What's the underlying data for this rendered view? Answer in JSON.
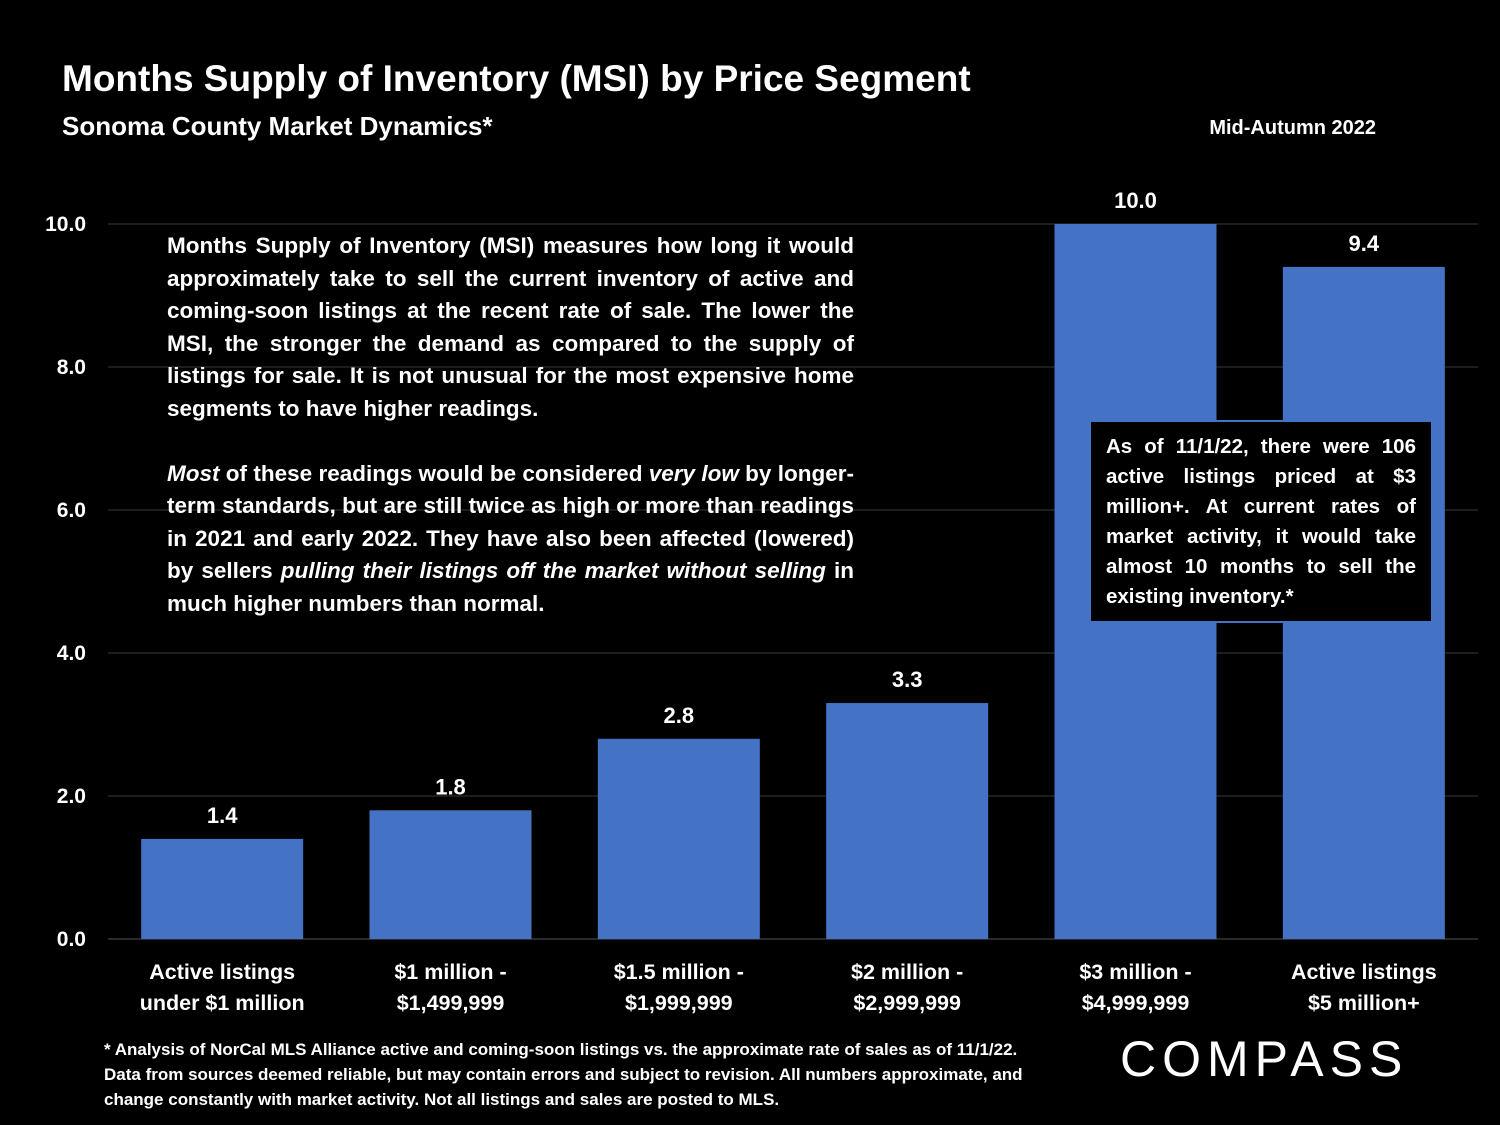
{
  "header": {
    "title": "Months Supply of Inventory (MSI) by Price Segment",
    "subtitle": "Sonoma County Market Dynamics*",
    "date": "Mid-Autumn 2022"
  },
  "description": {
    "paragraph1": "Months Supply of Inventory (MSI) measures how long it would approximately take to sell the current inventory of active and coming-soon listings at the recent rate of sale. The lower the MSI, the stronger the demand as compared to the supply of listings for sale. It is not unusual for the most expensive home segments to have higher readings.",
    "p2_em1": "Most",
    "p2_t1": " of these readings would be considered ",
    "p2_em2": "very low",
    "p2_t2": " by longer-term standards, but are still twice as high or more than readings in 2021 and early 2022. They have also been affected (lowered) by sellers ",
    "p2_em3": "pulling their listings off the market without selling",
    "p2_t3": " in much higher numbers than normal."
  },
  "callout": {
    "text": "As of 11/1/22, there were 106 active listings priced at $3 million+. At current rates of market activity, it would take almost 10 months to sell the existing inventory.*"
  },
  "footnote": "* Analysis of NorCal MLS Alliance active and coming-soon listings vs. the approximate rate of sales as of 11/1/22. Data from sources deemed reliable, but may contain errors and subject to revision. All numbers approximate, and change constantly with market activity. Not all listings and sales are posted to MLS.",
  "logo": "COMPASS",
  "colors": {
    "bar": "#4472c4",
    "background": "#000000",
    "gridline": "#3a3a3a",
    "text": "#ffffff"
  },
  "chart_data": {
    "type": "bar",
    "title": "Months Supply of Inventory (MSI) by Price Segment",
    "categories": [
      [
        "Active listings",
        "under $1 million"
      ],
      [
        "$1 million -",
        "$1,499,999"
      ],
      [
        "$1.5 million -",
        "$1,999,999"
      ],
      [
        "$2 million -",
        "$2,999,999"
      ],
      [
        "$3 million -",
        "$4,999,999"
      ],
      [
        "Active listings",
        "$5 million+"
      ]
    ],
    "values": [
      1.4,
      1.8,
      2.8,
      3.3,
      10.0,
      9.4
    ],
    "value_labels": [
      "1.4",
      "1.8",
      "2.8",
      "3.3",
      "10.0",
      "9.4"
    ],
    "yticks": [
      "0.0",
      "2.0",
      "4.0",
      "6.0",
      "8.0",
      "10.0"
    ],
    "ytick_values": [
      0,
      2,
      4,
      6,
      8,
      10
    ],
    "ylim": [
      0,
      10
    ],
    "xlabel": "",
    "ylabel": "",
    "grid": true
  }
}
